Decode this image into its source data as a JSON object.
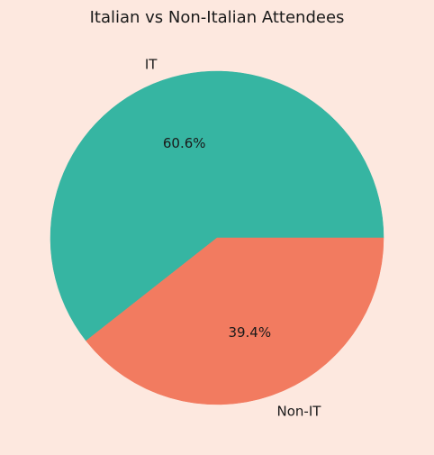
{
  "chart_data": {
    "type": "pie",
    "title": "Italian vs Non-Italian Attendees",
    "slices": [
      {
        "label": "IT",
        "value": 60.6,
        "pct_label": "60.6%",
        "color": "#36b5a2"
      },
      {
        "label": "Non-IT",
        "value": 39.4,
        "pct_label": "39.4%",
        "color": "#f27b60"
      }
    ],
    "start_angle": "3 o'clock",
    "direction": "counter-clockwise",
    "legend": "none"
  },
  "colors": {
    "background": "#fde8df"
  }
}
